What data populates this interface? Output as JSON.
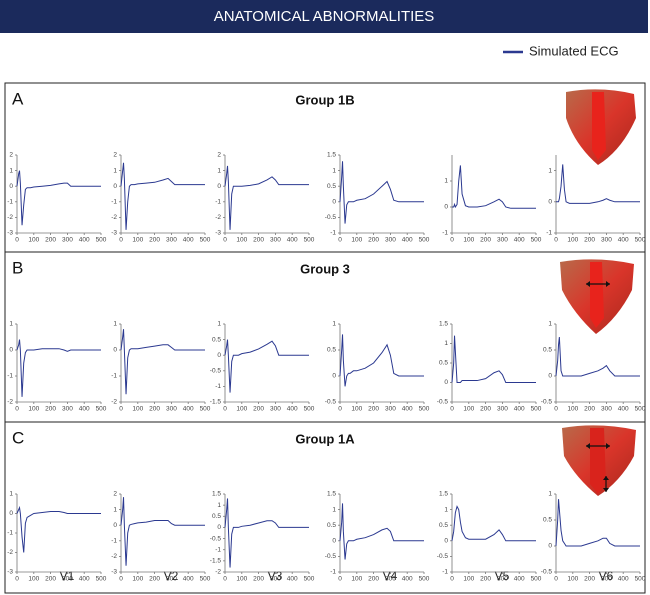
{
  "header": "ANATOMICAL ABNORMALITIES",
  "legend": {
    "label": "Simulated ECG",
    "color": "#2b3990"
  },
  "panels": [
    {
      "letter": "A",
      "title": "Group 1B"
    },
    {
      "letter": "B",
      "title": "Group 3"
    },
    {
      "letter": "C",
      "title": "Group 1A"
    }
  ],
  "leads": [
    "V1",
    "V2",
    "V3",
    "V4",
    "V5",
    "V6"
  ],
  "chart_data": [
    {
      "type": "line",
      "x": [
        0,
        10,
        15,
        20,
        30,
        40,
        50,
        60,
        80,
        100,
        150,
        200,
        250,
        280,
        300,
        320,
        350,
        400,
        500
      ],
      "xlim": [
        0,
        500
      ],
      "xticks": [
        0,
        100,
        200,
        300,
        400,
        500
      ],
      "ylim": [
        -3,
        2
      ],
      "yticks": [
        -3,
        -2,
        -1,
        0,
        1,
        2
      ],
      "series": [
        {
          "color": "#2b3990",
          "values": [
            0,
            0.8,
            1,
            0.2,
            -2.5,
            -1.2,
            -0.2,
            -0.1,
            -0.1,
            -0.05,
            0,
            0.05,
            0.15,
            0.2,
            0.2,
            0,
            0,
            0,
            0
          ]
        }
      ]
    },
    {
      "type": "line",
      "x": [
        0,
        10,
        15,
        20,
        30,
        40,
        50,
        60,
        80,
        100,
        150,
        200,
        250,
        280,
        300,
        320,
        350,
        400,
        500
      ],
      "xlim": [
        0,
        500
      ],
      "xticks": [
        0,
        100,
        200,
        300,
        400,
        500
      ],
      "ylim": [
        -3,
        2
      ],
      "yticks": [
        -3,
        -2,
        -1,
        0,
        1,
        2
      ],
      "series": [
        {
          "color": "#2b3990",
          "values": [
            0,
            1,
            1.5,
            0.5,
            -2.8,
            -1,
            0,
            0.1,
            0.1,
            0.15,
            0.2,
            0.25,
            0.4,
            0.5,
            0.3,
            0.1,
            0.1,
            0.1,
            0.1
          ]
        }
      ]
    },
    {
      "type": "line",
      "x": [
        0,
        10,
        15,
        20,
        30,
        40,
        50,
        60,
        80,
        100,
        150,
        200,
        250,
        280,
        300,
        320,
        350,
        400,
        500
      ],
      "xlim": [
        0,
        500
      ],
      "xticks": [
        0,
        100,
        200,
        300,
        400,
        500
      ],
      "ylim": [
        -3,
        2
      ],
      "yticks": [
        -3,
        -2,
        -1,
        0,
        1,
        2
      ],
      "series": [
        {
          "color": "#2b3990",
          "values": [
            0,
            0.8,
            1.3,
            0.3,
            -2.8,
            -0.5,
            0,
            0,
            0,
            0,
            0.05,
            0.15,
            0.4,
            0.6,
            0.4,
            0.1,
            0.1,
            0.1,
            0.1
          ]
        }
      ]
    },
    {
      "type": "line",
      "x": [
        0,
        10,
        15,
        20,
        30,
        40,
        50,
        60,
        80,
        100,
        150,
        200,
        250,
        280,
        300,
        320,
        350,
        400,
        500
      ],
      "xlim": [
        0,
        500
      ],
      "xticks": [
        0,
        100,
        200,
        300,
        400,
        500
      ],
      "ylim": [
        -1,
        1.5
      ],
      "yticks": [
        -1,
        -0.5,
        0,
        0.5,
        1,
        1.5
      ],
      "series": [
        {
          "color": "#2b3990",
          "values": [
            0,
            0.8,
            1.3,
            0.5,
            -0.7,
            -0.1,
            0,
            0,
            0,
            0.05,
            0.1,
            0.25,
            0.5,
            0.65,
            0.4,
            0.05,
            0,
            0,
            0
          ]
        }
      ]
    },
    {
      "type": "line",
      "x": [
        0,
        10,
        15,
        20,
        30,
        40,
        50,
        60,
        80,
        100,
        150,
        200,
        250,
        280,
        300,
        320,
        350,
        400,
        500
      ],
      "xlim": [
        0,
        500
      ],
      "xticks": [
        0,
        100,
        200,
        300,
        400,
        500
      ],
      "ylim": [
        -1,
        2
      ],
      "yticks": [
        -1,
        0,
        1
      ],
      "series": [
        {
          "color": "#2b3990",
          "values": [
            0,
            0,
            0.1,
            0,
            0.1,
            1,
            1.6,
            0.5,
            0.05,
            0,
            0,
            0.05,
            0.2,
            0.3,
            0.2,
            0,
            -0.05,
            -0.05,
            -0.05
          ]
        }
      ]
    },
    {
      "type": "line",
      "x": [
        0,
        10,
        15,
        20,
        30,
        40,
        50,
        60,
        80,
        100,
        150,
        200,
        250,
        280,
        300,
        320,
        350,
        400,
        500
      ],
      "xlim": [
        0,
        500
      ],
      "xticks": [
        0,
        100,
        200,
        300,
        400,
        500
      ],
      "ylim": [
        -1,
        1.5
      ],
      "yticks": [
        -1,
        0,
        1
      ],
      "series": [
        {
          "color": "#2b3990",
          "values": [
            0,
            0,
            0,
            0.1,
            0.5,
            1.2,
            0.4,
            0,
            -0.05,
            -0.05,
            -0.05,
            -0.05,
            0,
            0.05,
            0.1,
            0.05,
            0,
            0,
            0
          ]
        }
      ]
    },
    {
      "type": "line",
      "x": [
        0,
        10,
        15,
        20,
        30,
        40,
        50,
        60,
        80,
        100,
        150,
        200,
        250,
        280,
        300,
        320,
        350,
        400,
        500
      ],
      "xlim": [
        0,
        500
      ],
      "xticks": [
        0,
        100,
        200,
        300,
        400,
        500
      ],
      "ylim": [
        -2,
        1
      ],
      "yticks": [
        -2,
        -1,
        0,
        1
      ],
      "series": [
        {
          "color": "#2b3990",
          "values": [
            0,
            0.2,
            0.4,
            0,
            -1.8,
            -0.5,
            -0.1,
            0,
            0,
            0,
            0.05,
            0.05,
            0.05,
            0,
            -0.05,
            0,
            0,
            0,
            0
          ]
        }
      ]
    },
    {
      "type": "line",
      "x": [
        0,
        10,
        15,
        20,
        30,
        40,
        50,
        60,
        80,
        100,
        150,
        200,
        250,
        280,
        300,
        320,
        350,
        400,
        500
      ],
      "xlim": [
        0,
        500
      ],
      "xticks": [
        0,
        100,
        200,
        300,
        400,
        500
      ],
      "ylim": [
        -2,
        1
      ],
      "yticks": [
        -2,
        -1,
        0,
        1
      ],
      "series": [
        {
          "color": "#2b3990",
          "values": [
            0,
            0.5,
            0.8,
            0,
            -1.7,
            -0.3,
            0,
            0.05,
            0.05,
            0.05,
            0.1,
            0.15,
            0.2,
            0.2,
            0.1,
            0,
            0,
            0,
            0
          ]
        }
      ]
    },
    {
      "type": "line",
      "x": [
        0,
        10,
        15,
        20,
        30,
        40,
        50,
        60,
        80,
        100,
        150,
        200,
        250,
        280,
        300,
        320,
        350,
        400,
        500
      ],
      "xlim": [
        0,
        500
      ],
      "xticks": [
        0,
        100,
        200,
        300,
        400,
        500
      ],
      "ylim": [
        -1.5,
        1
      ],
      "yticks": [
        -1.5,
        -1,
        -0.5,
        0,
        0.5,
        1
      ],
      "series": [
        {
          "color": "#2b3990",
          "values": [
            0,
            0.3,
            0.5,
            0,
            -1.2,
            -0.2,
            0,
            0,
            0,
            0.05,
            0.1,
            0.2,
            0.35,
            0.45,
            0.3,
            0,
            0,
            0,
            0
          ]
        }
      ]
    },
    {
      "type": "line",
      "x": [
        0,
        10,
        15,
        20,
        30,
        40,
        50,
        60,
        80,
        100,
        150,
        200,
        250,
        280,
        300,
        320,
        350,
        400,
        500
      ],
      "xlim": [
        0,
        500
      ],
      "xticks": [
        0,
        100,
        200,
        300,
        400,
        500
      ],
      "ylim": [
        -0.5,
        1
      ],
      "yticks": [
        -0.5,
        0,
        0.5,
        1
      ],
      "series": [
        {
          "color": "#2b3990",
          "values": [
            0,
            0.5,
            0.8,
            0.3,
            -0.2,
            0,
            0.05,
            0.05,
            0.1,
            0.1,
            0.15,
            0.25,
            0.45,
            0.6,
            0.4,
            0.05,
            0,
            0,
            0
          ]
        }
      ]
    },
    {
      "type": "line",
      "x": [
        0,
        10,
        15,
        20,
        30,
        40,
        50,
        60,
        80,
        100,
        150,
        200,
        250,
        280,
        300,
        320,
        350,
        400,
        500
      ],
      "xlim": [
        0,
        500
      ],
      "xticks": [
        0,
        100,
        200,
        300,
        400,
        500
      ],
      "ylim": [
        -0.5,
        1.5
      ],
      "yticks": [
        -0.5,
        0,
        0.5,
        1,
        1.5
      ],
      "series": [
        {
          "color": "#2b3990",
          "values": [
            0,
            0.5,
            1.2,
            0.8,
            0,
            0,
            0,
            0.05,
            0.05,
            0.05,
            0.05,
            0.1,
            0.25,
            0.3,
            0.2,
            0,
            0,
            0,
            0
          ]
        }
      ]
    },
    {
      "type": "line",
      "x": [
        0,
        10,
        15,
        20,
        30,
        40,
        50,
        60,
        80,
        100,
        150,
        200,
        250,
        280,
        300,
        320,
        350,
        400,
        500
      ],
      "xlim": [
        0,
        500
      ],
      "xticks": [
        0,
        100,
        200,
        300,
        400,
        500
      ],
      "ylim": [
        -0.5,
        1
      ],
      "yticks": [
        -0.5,
        0,
        0.5,
        1
      ],
      "series": [
        {
          "color": "#2b3990",
          "values": [
            0,
            0.3,
            0.6,
            0.75,
            0.1,
            0,
            0,
            0,
            0,
            0,
            0,
            0.05,
            0.1,
            0.15,
            0.2,
            0.1,
            0,
            0,
            0
          ]
        }
      ]
    },
    {
      "type": "line",
      "x": [
        0,
        10,
        15,
        20,
        30,
        40,
        50,
        60,
        80,
        100,
        150,
        200,
        250,
        280,
        300,
        320,
        350,
        400,
        500
      ],
      "xlim": [
        0,
        500
      ],
      "xticks": [
        0,
        100,
        200,
        300,
        400,
        500
      ],
      "ylim": [
        -3,
        1
      ],
      "yticks": [
        -3,
        -2,
        -1,
        0,
        1
      ],
      "series": [
        {
          "color": "#2b3990",
          "values": [
            0,
            0.2,
            0.3,
            0,
            -1.2,
            -2,
            -0.5,
            -0.2,
            -0.1,
            0,
            0.05,
            0.1,
            0.1,
            0.05,
            0,
            0,
            0,
            0,
            0
          ]
        }
      ]
    },
    {
      "type": "line",
      "x": [
        0,
        10,
        15,
        20,
        30,
        40,
        50,
        60,
        80,
        100,
        150,
        200,
        250,
        280,
        300,
        320,
        350,
        400,
        500
      ],
      "xlim": [
        0,
        500
      ],
      "xticks": [
        0,
        100,
        200,
        300,
        400,
        500
      ],
      "ylim": [
        -3,
        2
      ],
      "yticks": [
        -3,
        -2,
        -1,
        0,
        1,
        2
      ],
      "series": [
        {
          "color": "#2b3990",
          "values": [
            0,
            1,
            1.8,
            0,
            -2.6,
            -0.5,
            0,
            0.05,
            0.1,
            0.15,
            0.2,
            0.3,
            0.3,
            0.3,
            0.1,
            0,
            0,
            0,
            0
          ]
        }
      ]
    },
    {
      "type": "line",
      "x": [
        0,
        10,
        15,
        20,
        30,
        40,
        50,
        60,
        80,
        100,
        150,
        200,
        250,
        280,
        300,
        320,
        350,
        400,
        500
      ],
      "xlim": [
        0,
        500
      ],
      "xticks": [
        0,
        100,
        200,
        300,
        400,
        500
      ],
      "ylim": [
        -2,
        1.5
      ],
      "yticks": [
        -2,
        -1.5,
        -1,
        -0.5,
        0,
        0.5,
        1,
        1.5
      ],
      "series": [
        {
          "color": "#2b3990",
          "values": [
            0,
            0.8,
            1.3,
            0,
            -1.8,
            -0.3,
            0,
            0,
            0,
            0.05,
            0.1,
            0.2,
            0.3,
            0.3,
            0.2,
            0,
            0,
            0,
            0
          ]
        }
      ]
    },
    {
      "type": "line",
      "x": [
        0,
        10,
        15,
        20,
        30,
        40,
        50,
        60,
        80,
        100,
        150,
        200,
        250,
        280,
        300,
        320,
        350,
        400,
        500
      ],
      "xlim": [
        0,
        500
      ],
      "xticks": [
        0,
        100,
        200,
        300,
        400,
        500
      ],
      "ylim": [
        -1,
        1.5
      ],
      "yticks": [
        -1,
        -0.5,
        0,
        0.5,
        1,
        1.5
      ],
      "series": [
        {
          "color": "#2b3990",
          "values": [
            0,
            0.6,
            1.2,
            0.3,
            -0.6,
            -0.1,
            0,
            0,
            0,
            0.05,
            0.1,
            0.2,
            0.35,
            0.4,
            0.3,
            0,
            0,
            0,
            0
          ]
        }
      ]
    },
    {
      "type": "line",
      "x": [
        0,
        10,
        15,
        20,
        30,
        40,
        50,
        60,
        80,
        100,
        150,
        200,
        250,
        280,
        300,
        320,
        350,
        400,
        500
      ],
      "xlim": [
        0,
        500
      ],
      "xticks": [
        0,
        100,
        200,
        300,
        400,
        500
      ],
      "ylim": [
        -1,
        1.5
      ],
      "yticks": [
        -1,
        -0.5,
        0,
        0.5,
        1,
        1.5
      ],
      "series": [
        {
          "color": "#2b3990",
          "values": [
            0,
            0.3,
            0.6,
            0.9,
            1.1,
            1,
            0.6,
            0.3,
            0.1,
            0.05,
            0.05,
            0.05,
            0.2,
            0.35,
            0.2,
            0,
            0,
            0,
            0
          ]
        }
      ]
    },
    {
      "type": "line",
      "x": [
        0,
        10,
        15,
        20,
        30,
        40,
        50,
        60,
        80,
        100,
        150,
        200,
        250,
        280,
        300,
        320,
        350,
        400,
        500
      ],
      "xlim": [
        0,
        500
      ],
      "xticks": [
        0,
        100,
        200,
        300,
        400,
        500
      ],
      "ylim": [
        -0.5,
        1
      ],
      "yticks": [
        -0.5,
        0,
        0.5,
        1
      ],
      "series": [
        {
          "color": "#2b3990",
          "values": [
            0,
            0.5,
            0.9,
            0.7,
            0.3,
            0.1,
            0.05,
            0,
            0,
            0,
            0,
            0.05,
            0.1,
            0.15,
            0.15,
            0.05,
            0,
            0,
            0
          ]
        }
      ]
    }
  ]
}
